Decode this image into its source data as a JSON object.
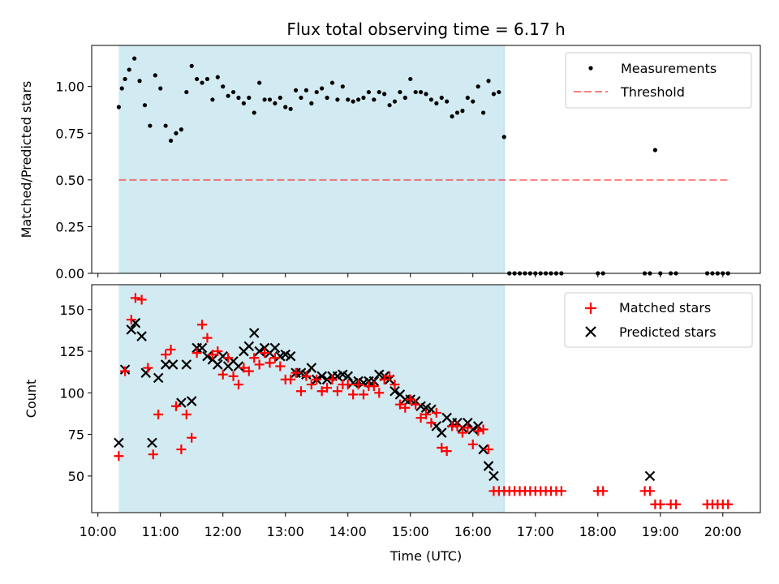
{
  "chart_data": {
    "type": "scatter",
    "title": "Flux total observing time = 6.17 h",
    "xlabel": "Time (UTC)",
    "x_ticks": [
      "10:00",
      "11:00",
      "12:00",
      "13:00",
      "14:00",
      "15:00",
      "16:00",
      "17:00",
      "18:00",
      "19:00",
      "20:00"
    ],
    "xlim": [
      "09:54",
      "20:36"
    ],
    "shaded_interval": [
      "10:20",
      "16:30"
    ],
    "colors": {
      "shade": "#add8e6",
      "measurements": "#000000",
      "threshold": "#ff0000",
      "matched": "#ff0000",
      "predicted": "#000000"
    },
    "panels": [
      {
        "ylabel": "Matched/Predicted stars",
        "ylim": [
          0,
          1.22
        ],
        "y_ticks": [
          "0.00",
          "0.25",
          "0.50",
          "0.75",
          "1.00"
        ],
        "y_tick_values": [
          0,
          0.25,
          0.5,
          0.75,
          1.0
        ],
        "legend": [
          "Measurements",
          "Threshold"
        ],
        "legend_position": "top-right",
        "threshold": {
          "name": "Threshold",
          "y": 0.5,
          "x_range": [
            "10:20",
            "20:05"
          ]
        },
        "measurements": {
          "name": "Measurements",
          "x": [
            "10:20",
            "10:23",
            "10:26",
            "10:30",
            "10:35",
            "10:40",
            "10:45",
            "10:50",
            "10:55",
            "11:00",
            "11:05",
            "11:10",
            "11:15",
            "11:20",
            "11:25",
            "11:30",
            "11:35",
            "11:40",
            "11:45",
            "11:50",
            "11:55",
            "12:00",
            "12:05",
            "12:10",
            "12:15",
            "12:20",
            "12:25",
            "12:30",
            "12:35",
            "12:40",
            "12:45",
            "12:50",
            "12:55",
            "13:00",
            "13:05",
            "13:10",
            "13:15",
            "13:20",
            "13:25",
            "13:30",
            "13:35",
            "13:40",
            "13:45",
            "13:50",
            "13:55",
            "14:00",
            "14:05",
            "14:10",
            "14:15",
            "14:20",
            "14:25",
            "14:30",
            "14:35",
            "14:40",
            "14:45",
            "14:50",
            "14:55",
            "15:00",
            "15:05",
            "15:10",
            "15:15",
            "15:20",
            "15:25",
            "15:30",
            "15:35",
            "15:40",
            "15:45",
            "15:50",
            "15:55",
            "16:00",
            "16:05",
            "16:10",
            "16:15",
            "16:20",
            "16:25",
            "16:30",
            "16:35",
            "16:40",
            "16:45",
            "16:50",
            "16:55",
            "17:00",
            "17:05",
            "17:10",
            "17:15",
            "17:20",
            "17:25",
            "18:00",
            "18:05",
            "18:45",
            "18:50",
            "18:55",
            "19:00",
            "19:10",
            "19:15",
            "19:45",
            "19:50",
            "19:55",
            "20:00",
            "20:05"
          ],
          "y": [
            0.89,
            0.99,
            1.04,
            1.09,
            1.15,
            1.03,
            0.9,
            0.79,
            1.06,
            0.99,
            0.79,
            0.71,
            0.75,
            0.77,
            0.97,
            1.11,
            1.04,
            1.02,
            1.04,
            0.93,
            1.05,
            1.0,
            0.95,
            0.97,
            0.94,
            0.91,
            0.94,
            0.86,
            1.02,
            0.93,
            0.93,
            0.91,
            0.94,
            0.89,
            0.88,
            0.98,
            0.94,
            0.98,
            0.91,
            0.97,
            0.99,
            0.94,
            1.02,
            0.93,
            1.0,
            0.93,
            0.92,
            0.93,
            0.94,
            0.97,
            0.93,
            0.97,
            0.96,
            0.9,
            0.92,
            0.97,
            0.94,
            1.04,
            0.97,
            0.97,
            0.96,
            0.93,
            0.91,
            0.94,
            0.92,
            0.84,
            0.86,
            0.87,
            0.94,
            0.92,
            1.0,
            0.86,
            1.03,
            0.96,
            0.97,
            0.73,
            0,
            0,
            0,
            0,
            0,
            0,
            0,
            0,
            0,
            0,
            0,
            0,
            0,
            0,
            0,
            0.66,
            0,
            0,
            0,
            0,
            0,
            0,
            0,
            0
          ]
        }
      },
      {
        "ylabel": "Count",
        "ylim": [
          28,
          165
        ],
        "y_ticks": [
          "50",
          "75",
          "100",
          "125",
          "150"
        ],
        "y_tick_values": [
          50,
          75,
          100,
          125,
          150
        ],
        "legend": [
          "Matched stars",
          "Predicted stars"
        ],
        "legend_position": "top-right",
        "matched": {
          "name": "Matched stars",
          "x": [
            "10:20",
            "10:26",
            "10:32",
            "10:36",
            "10:42",
            "10:48",
            "10:53",
            "10:58",
            "11:05",
            "11:10",
            "11:15",
            "11:20",
            "11:25",
            "11:30",
            "11:35",
            "11:40",
            "11:45",
            "11:50",
            "11:55",
            "12:00",
            "12:05",
            "12:10",
            "12:15",
            "12:20",
            "12:25",
            "12:30",
            "12:35",
            "12:40",
            "12:45",
            "12:50",
            "12:55",
            "13:00",
            "13:05",
            "13:10",
            "13:15",
            "13:20",
            "13:25",
            "13:30",
            "13:35",
            "13:40",
            "13:45",
            "13:50",
            "13:55",
            "14:00",
            "14:05",
            "14:10",
            "14:15",
            "14:20",
            "14:25",
            "14:30",
            "14:35",
            "14:40",
            "14:45",
            "14:50",
            "14:55",
            "15:00",
            "15:05",
            "15:10",
            "15:15",
            "15:20",
            "15:25",
            "15:30",
            "15:35",
            "15:40",
            "15:45",
            "15:50",
            "15:55",
            "16:00",
            "16:05",
            "16:10",
            "16:15",
            "16:20",
            "16:25",
            "16:30",
            "16:35",
            "16:40",
            "16:45",
            "16:50",
            "16:55",
            "17:00",
            "17:05",
            "17:10",
            "17:15",
            "17:20",
            "17:25",
            "18:00",
            "18:05",
            "18:45",
            "18:50",
            "18:55",
            "19:00",
            "19:10",
            "19:15",
            "19:45",
            "19:50",
            "19:55",
            "20:00",
            "20:05"
          ],
          "y": [
            62,
            113,
            144,
            157,
            156,
            115,
            63,
            87,
            123,
            126,
            92,
            66,
            87,
            73,
            124,
            141,
            133,
            123,
            125,
            111,
            121,
            110,
            105,
            115,
            113,
            121,
            117,
            124,
            118,
            121,
            116,
            108,
            108,
            112,
            101,
            110,
            105,
            108,
            101,
            103,
            108,
            101,
            105,
            105,
            99,
            105,
            99,
            104,
            104,
            100,
            108,
            110,
            105,
            93,
            91,
            96,
            93,
            85,
            87,
            82,
            88,
            67,
            65,
            80,
            80,
            76,
            79,
            69,
            77,
            78,
            66,
            41,
            41,
            41,
            41,
            41,
            41,
            41,
            41,
            41,
            41,
            41,
            41,
            41,
            41,
            41,
            41,
            41,
            41,
            33,
            33,
            33,
            33,
            33,
            33,
            33,
            33,
            33
          ]
        },
        "predicted": {
          "name": "Predicted stars",
          "x": [
            "10:20",
            "10:26",
            "10:32",
            "10:36",
            "10:42",
            "10:46",
            "10:52",
            "10:58",
            "11:05",
            "11:12",
            "11:20",
            "11:25",
            "11:30",
            "11:35",
            "11:40",
            "11:45",
            "11:50",
            "11:55",
            "12:00",
            "12:05",
            "12:10",
            "12:15",
            "12:20",
            "12:25",
            "12:30",
            "12:35",
            "12:40",
            "12:45",
            "12:50",
            "12:55",
            "13:00",
            "13:05",
            "13:10",
            "13:15",
            "13:20",
            "13:25",
            "13:30",
            "13:35",
            "13:40",
            "13:45",
            "13:50",
            "13:55",
            "14:00",
            "14:05",
            "14:10",
            "14:15",
            "14:20",
            "14:25",
            "14:30",
            "14:35",
            "14:40",
            "14:45",
            "14:50",
            "14:55",
            "15:00",
            "15:05",
            "15:10",
            "15:15",
            "15:20",
            "15:25",
            "15:30",
            "15:35",
            "15:40",
            "15:45",
            "15:50",
            "15:55",
            "16:00",
            "16:05",
            "16:10",
            "16:15",
            "16:20",
            "18:50"
          ],
          "y": [
            70,
            114,
            138,
            142,
            134,
            112,
            70,
            109,
            117,
            117,
            94,
            117,
            95,
            127,
            127,
            122,
            120,
            117,
            122,
            116,
            119,
            116,
            125,
            128,
            136,
            125,
            127,
            124,
            127,
            122,
            123,
            122,
            112,
            112,
            111,
            115,
            108,
            110,
            108,
            110,
            110,
            111,
            110,
            106,
            107,
            106,
            107,
            107,
            111,
            110,
            108,
            101,
            99,
            96,
            96,
            95,
            92,
            91,
            90,
            80,
            76,
            85,
            82,
            82,
            79,
            82,
            78,
            80,
            66,
            56,
            50,
            50
          ]
        }
      }
    ]
  }
}
